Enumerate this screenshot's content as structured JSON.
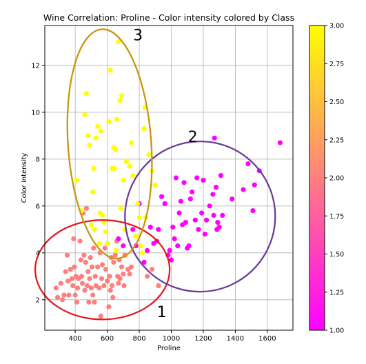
{
  "chart_data": {
    "type": "scatter",
    "title": "Wine Correlation: Proline - Color intensity colored by Class",
    "xlabel": "Proline",
    "ylabel": "Color intensity",
    "xlim": [
      210,
      1760
    ],
    "ylim": [
      0.7,
      13.7
    ],
    "xticks": [
      400,
      600,
      800,
      1000,
      1200,
      1400,
      1600
    ],
    "yticks": [
      2,
      4,
      6,
      8,
      10,
      12
    ],
    "grid": true,
    "colormap": "spring",
    "colormap_colors": {
      "low": "#ff00ff",
      "high": "#ffff00"
    },
    "colorbar": {
      "range": [
        1.0,
        3.0
      ],
      "ticks": [
        "1.00",
        "1.25",
        "1.50",
        "1.75",
        "2.00",
        "2.25",
        "2.50",
        "2.75",
        "3.00"
      ]
    },
    "series": [
      {
        "class": 1,
        "color": "#ff7f7f",
        "points": [
          [
            280,
            2.5
          ],
          [
            290,
            2.1
          ],
          [
            310,
            2.7
          ],
          [
            320,
            2.0
          ],
          [
            330,
            2.2
          ],
          [
            340,
            3.2
          ],
          [
            350,
            3.9
          ],
          [
            355,
            2.8
          ],
          [
            360,
            2.2
          ],
          [
            370,
            3.3
          ],
          [
            380,
            2.9
          ],
          [
            385,
            2.6
          ],
          [
            390,
            4.6
          ],
          [
            395,
            3.4
          ],
          [
            400,
            2.2
          ],
          [
            405,
            3.0
          ],
          [
            410,
            1.9
          ],
          [
            415,
            2.5
          ],
          [
            420,
            2.9
          ],
          [
            430,
            4.5
          ],
          [
            435,
            3.7
          ],
          [
            440,
            3.0
          ],
          [
            445,
            2.7
          ],
          [
            450,
            5.7
          ],
          [
            455,
            3.9
          ],
          [
            460,
            2.4
          ],
          [
            465,
            3.6
          ],
          [
            470,
            5.9
          ],
          [
            475,
            2.6
          ],
          [
            480,
            3.2
          ],
          [
            485,
            1.9
          ],
          [
            490,
            2.9
          ],
          [
            495,
            3.8
          ],
          [
            500,
            2.5
          ],
          [
            505,
            3.4
          ],
          [
            510,
            2.2
          ],
          [
            515,
            4.2
          ],
          [
            520,
            1.9
          ],
          [
            525,
            3.0
          ],
          [
            530,
            2.6
          ],
          [
            540,
            3.4
          ],
          [
            550,
            2.5
          ],
          [
            555,
            4.0
          ],
          [
            560,
            1.3
          ],
          [
            565,
            2.9
          ],
          [
            570,
            3.5
          ],
          [
            580,
            2.6
          ],
          [
            585,
            4.2
          ],
          [
            590,
            3.3
          ],
          [
            600,
            2.8
          ],
          [
            610,
            1.7
          ],
          [
            615,
            3.0
          ],
          [
            620,
            2.4
          ],
          [
            625,
            3.8
          ],
          [
            630,
            2.6
          ],
          [
            635,
            2.1
          ],
          [
            640,
            3.6
          ],
          [
            650,
            3.9
          ],
          [
            660,
            4.5
          ],
          [
            665,
            3.0
          ],
          [
            670,
            2.7
          ],
          [
            675,
            3.7
          ],
          [
            680,
            2.9
          ],
          [
            690,
            3.4
          ],
          [
            700,
            3.1
          ],
          [
            705,
            2.6
          ],
          [
            710,
            3.9
          ],
          [
            730,
            3.3
          ],
          [
            740,
            3.1
          ],
          [
            750,
            3.4
          ],
          [
            850,
            3.0
          ],
          [
            880,
            3.3
          ],
          [
            920,
            2.6
          ]
        ]
      },
      {
        "class": 2,
        "color": "#ff00ff",
        "points": [
          [
            670,
            4.6
          ],
          [
            700,
            4.3
          ],
          [
            760,
            5.0
          ],
          [
            780,
            4.3
          ],
          [
            800,
            6.1
          ],
          [
            830,
            3.6
          ],
          [
            850,
            4.1
          ],
          [
            870,
            5.1
          ],
          [
            890,
            4.4
          ],
          [
            910,
            4.5
          ],
          [
            920,
            5.0
          ],
          [
            940,
            6.4
          ],
          [
            960,
            6.1
          ],
          [
            980,
            3.9
          ],
          [
            990,
            4.1
          ],
          [
            1000,
            3.7
          ],
          [
            1010,
            5.1
          ],
          [
            1020,
            4.6
          ],
          [
            1030,
            7.2
          ],
          [
            1040,
            4.3
          ],
          [
            1050,
            5.7
          ],
          [
            1060,
            6.2
          ],
          [
            1070,
            5.2
          ],
          [
            1080,
            7.0
          ],
          [
            1090,
            5.3
          ],
          [
            1100,
            4.2
          ],
          [
            1110,
            4.3
          ],
          [
            1120,
            6.3
          ],
          [
            1130,
            6.6
          ],
          [
            1150,
            5.4
          ],
          [
            1160,
            7.2
          ],
          [
            1170,
            5.0
          ],
          [
            1190,
            5.7
          ],
          [
            1200,
            7.1
          ],
          [
            1210,
            4.8
          ],
          [
            1220,
            5.4
          ],
          [
            1240,
            6.0
          ],
          [
            1260,
            6.5
          ],
          [
            1265,
            5.6
          ],
          [
            1270,
            8.9
          ],
          [
            1280,
            6.8
          ],
          [
            1285,
            5.0
          ],
          [
            1290,
            5.3
          ],
          [
            1300,
            5.1
          ],
          [
            1310,
            7.3
          ],
          [
            1320,
            5.6
          ],
          [
            1380,
            6.3
          ],
          [
            1450,
            6.7
          ],
          [
            1480,
            7.8
          ],
          [
            1510,
            5.8
          ],
          [
            1520,
            6.9
          ],
          [
            1550,
            7.5
          ],
          [
            1680,
            8.7
          ]
        ]
      },
      {
        "class": 3,
        "color": "#ffff00",
        "points": [
          [
            410,
            7.1
          ],
          [
            440,
            5.8
          ],
          [
            460,
            9.9
          ],
          [
            470,
            10.8
          ],
          [
            480,
            9.0
          ],
          [
            490,
            8.6
          ],
          [
            500,
            5.2
          ],
          [
            510,
            6.6
          ],
          [
            515,
            7.6
          ],
          [
            520,
            5.0
          ],
          [
            530,
            8.9
          ],
          [
            540,
            9.4
          ],
          [
            550,
            4.4
          ],
          [
            555,
            5.7
          ],
          [
            560,
            9.2
          ],
          [
            570,
            5.6
          ],
          [
            580,
            5.3
          ],
          [
            590,
            4.9
          ],
          [
            600,
            4.4
          ],
          [
            610,
            9.6
          ],
          [
            620,
            11.8
          ],
          [
            630,
            7.6
          ],
          [
            640,
            8.5
          ],
          [
            645,
            7.6
          ],
          [
            650,
            8.4
          ],
          [
            655,
            4.1
          ],
          [
            660,
            9.7
          ],
          [
            670,
            13.0
          ],
          [
            680,
            10.5
          ],
          [
            685,
            5.9
          ],
          [
            690,
            10.7
          ],
          [
            700,
            7.1
          ],
          [
            710,
            5.0
          ],
          [
            720,
            7.9
          ],
          [
            740,
            7.7
          ],
          [
            750,
            8.7
          ],
          [
            760,
            7.3
          ],
          [
            780,
            4.7
          ],
          [
            790,
            6.1
          ],
          [
            800,
            5.5
          ],
          [
            810,
            4.3
          ],
          [
            820,
            4.0
          ],
          [
            830,
            9.3
          ],
          [
            835,
            10.2
          ],
          [
            840,
            5.5
          ],
          [
            860,
            8.2
          ],
          [
            880,
            7.5
          ],
          [
            900,
            6.9
          ]
        ]
      }
    ],
    "annotations": [
      {
        "label": "1",
        "ellipse": {
          "cx": 570,
          "cy": 3.28,
          "rx": 420,
          "ry": 2.12
        },
        "color": "#e41a1c"
      },
      {
        "label": "2",
        "ellipse": {
          "cx": 1180,
          "cy": 5.55,
          "rx": 470,
          "ry": 3.2,
          "angle_deg": -47
        },
        "color": "#6a3d9a"
      },
      {
        "label": "3",
        "ellipse": {
          "cx": 615,
          "cy": 8.65,
          "rx": 260,
          "ry": 4.9,
          "angle_deg": -4
        },
        "color": "#c8960c"
      }
    ]
  }
}
